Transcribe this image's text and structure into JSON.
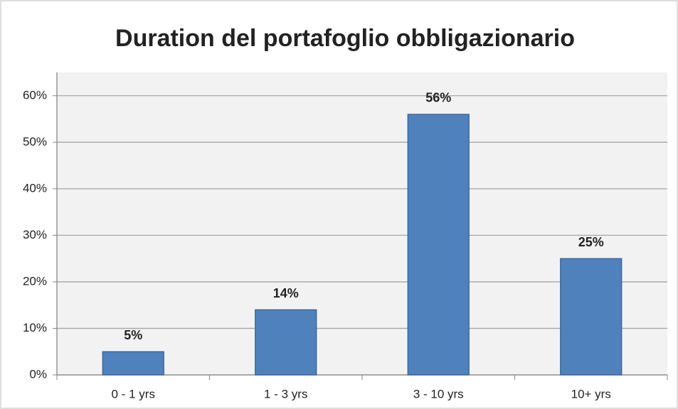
{
  "chart_data": {
    "type": "bar",
    "title": "Duration del portafoglio obbligazionario",
    "categories": [
      "0 - 1 yrs",
      "1 - 3 yrs",
      "3 - 10 yrs",
      "10+ yrs"
    ],
    "values": [
      5,
      14,
      56,
      25
    ],
    "value_labels": [
      "5%",
      "14%",
      "56%",
      "25%"
    ],
    "color": "#4f81bd",
    "ylim": [
      0,
      65
    ],
    "yticks": [
      {
        "value": 0,
        "label": "0%"
      },
      {
        "value": 10,
        "label": "10%"
      },
      {
        "value": 20,
        "label": "20%"
      },
      {
        "value": 30,
        "label": "30%"
      },
      {
        "value": 40,
        "label": "40%"
      },
      {
        "value": 50,
        "label": "50%"
      },
      {
        "value": 60,
        "label": "60%"
      }
    ],
    "grid": true
  }
}
